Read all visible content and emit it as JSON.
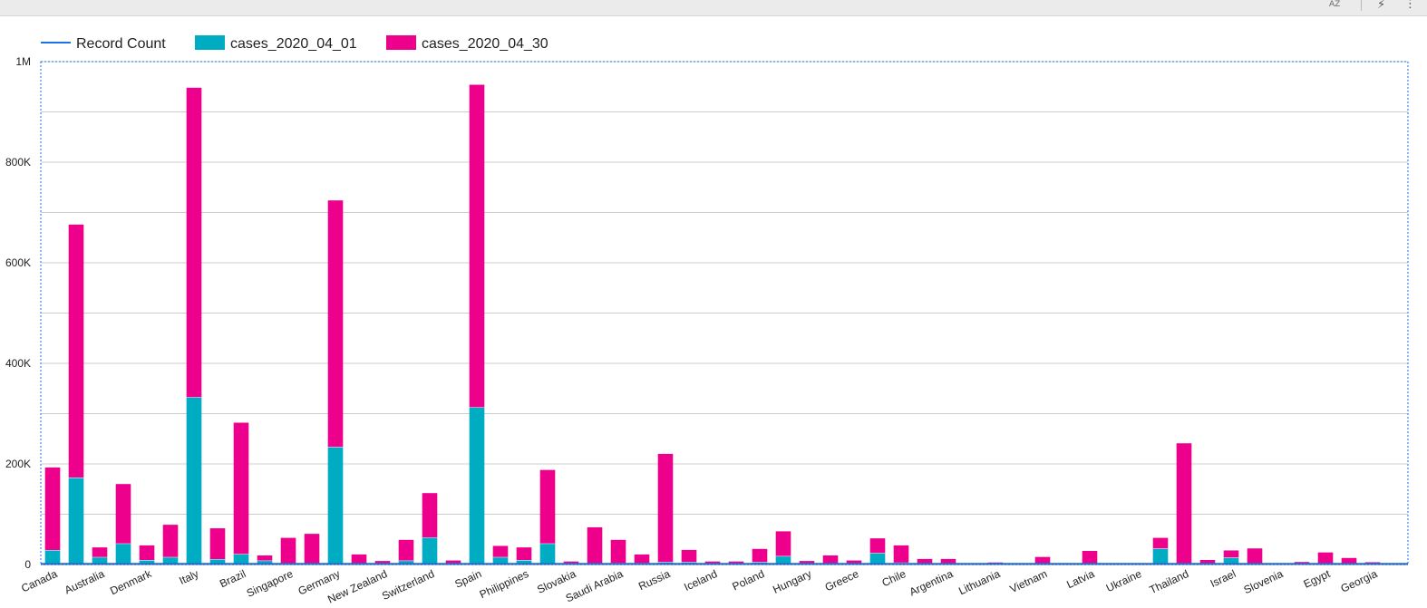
{
  "toolbar": {
    "sort_label": "AZ",
    "sort_icon": "sort-az-icon",
    "bolt_icon": "bolt-icon",
    "more_icon": "more-vert-icon"
  },
  "colors": {
    "record_count": "#1a73e8",
    "cases_2020_04_01": "#00acc1",
    "cases_2020_04_30": "#ec008c",
    "grid": "#cccccc",
    "frame": "#1a73e8"
  },
  "chart_data": {
    "type": "bar",
    "stacked": true,
    "legend_position": "top-left",
    "grid": true,
    "ylim": [
      0,
      1000000
    ],
    "yticks": [
      {
        "value": 0,
        "label": "0"
      },
      {
        "value": 200000,
        "label": "200K"
      },
      {
        "value": 400000,
        "label": "400K"
      },
      {
        "value": 600000,
        "label": "600K"
      },
      {
        "value": 800000,
        "label": "800K"
      },
      {
        "value": 1000000,
        "label": "1M"
      }
    ],
    "legend": [
      {
        "name": "Record Count",
        "kind": "line",
        "color": "#1a73e8"
      },
      {
        "name": "cases_2020_04_01",
        "kind": "bar",
        "color": "#00acc1"
      },
      {
        "name": "cases_2020_04_30",
        "kind": "bar",
        "color": "#ec008c"
      }
    ],
    "categories": [
      "Canada",
      "",
      "Australia",
      "",
      "Denmark",
      "",
      "Italy",
      "",
      "Brazil",
      "",
      "Singapore",
      "",
      "Germany",
      "",
      "New Zealand",
      "",
      "Switzerland",
      "",
      "Spain",
      "",
      "Philippines",
      "",
      "Slovakia",
      "",
      "Saudi Arabia",
      "",
      "Russia",
      "",
      "Iceland",
      "",
      "Poland",
      "",
      "Hungary",
      "",
      "Greece",
      "",
      "Chile",
      "",
      "Argentina",
      "",
      "Lithuania",
      "",
      "Vietnam",
      "",
      "Latvia",
      "",
      "Ukraine",
      "",
      "Thailand",
      "",
      "Israel",
      "",
      "Slovenia",
      "",
      "Egypt",
      "",
      "Georgia",
      ""
    ],
    "series": [
      {
        "name": "cases_2020_04_01",
        "values": [
          28000,
          172000,
          14000,
          41000,
          8000,
          14000,
          332000,
          10000,
          20000,
          7000,
          1000,
          1000,
          233000,
          1000,
          1000,
          7000,
          53000,
          1000,
          312000,
          14000,
          8000,
          41000,
          1000,
          1000,
          2000,
          2000,
          4000,
          4000,
          1000,
          1000,
          4000,
          16000,
          1000,
          1000,
          1000,
          22000,
          3000,
          1000,
          1000,
          1000,
          1000,
          1000,
          1000,
          1000,
          1000,
          1000,
          1000,
          31000,
          1000,
          1000,
          13000,
          1000,
          1000,
          1000,
          1000,
          1000,
          500,
          500
        ]
      },
      {
        "name": "cases_2020_04_30",
        "values": [
          165000,
          504000,
          20000,
          119000,
          30000,
          65000,
          616000,
          62000,
          262000,
          11000,
          52000,
          60000,
          491000,
          19000,
          6000,
          42000,
          89000,
          7000,
          642000,
          23000,
          26000,
          147000,
          5000,
          73000,
          47000,
          18000,
          216000,
          25000,
          5000,
          5000,
          27000,
          50000,
          6000,
          17000,
          7000,
          30000,
          35000,
          10000,
          10000,
          500,
          3000,
          500,
          14000,
          500,
          26000,
          1000,
          500,
          22000,
          240000,
          8000,
          15000,
          31000,
          500,
          4000,
          23000,
          12000,
          4000,
          500
        ]
      }
    ]
  }
}
